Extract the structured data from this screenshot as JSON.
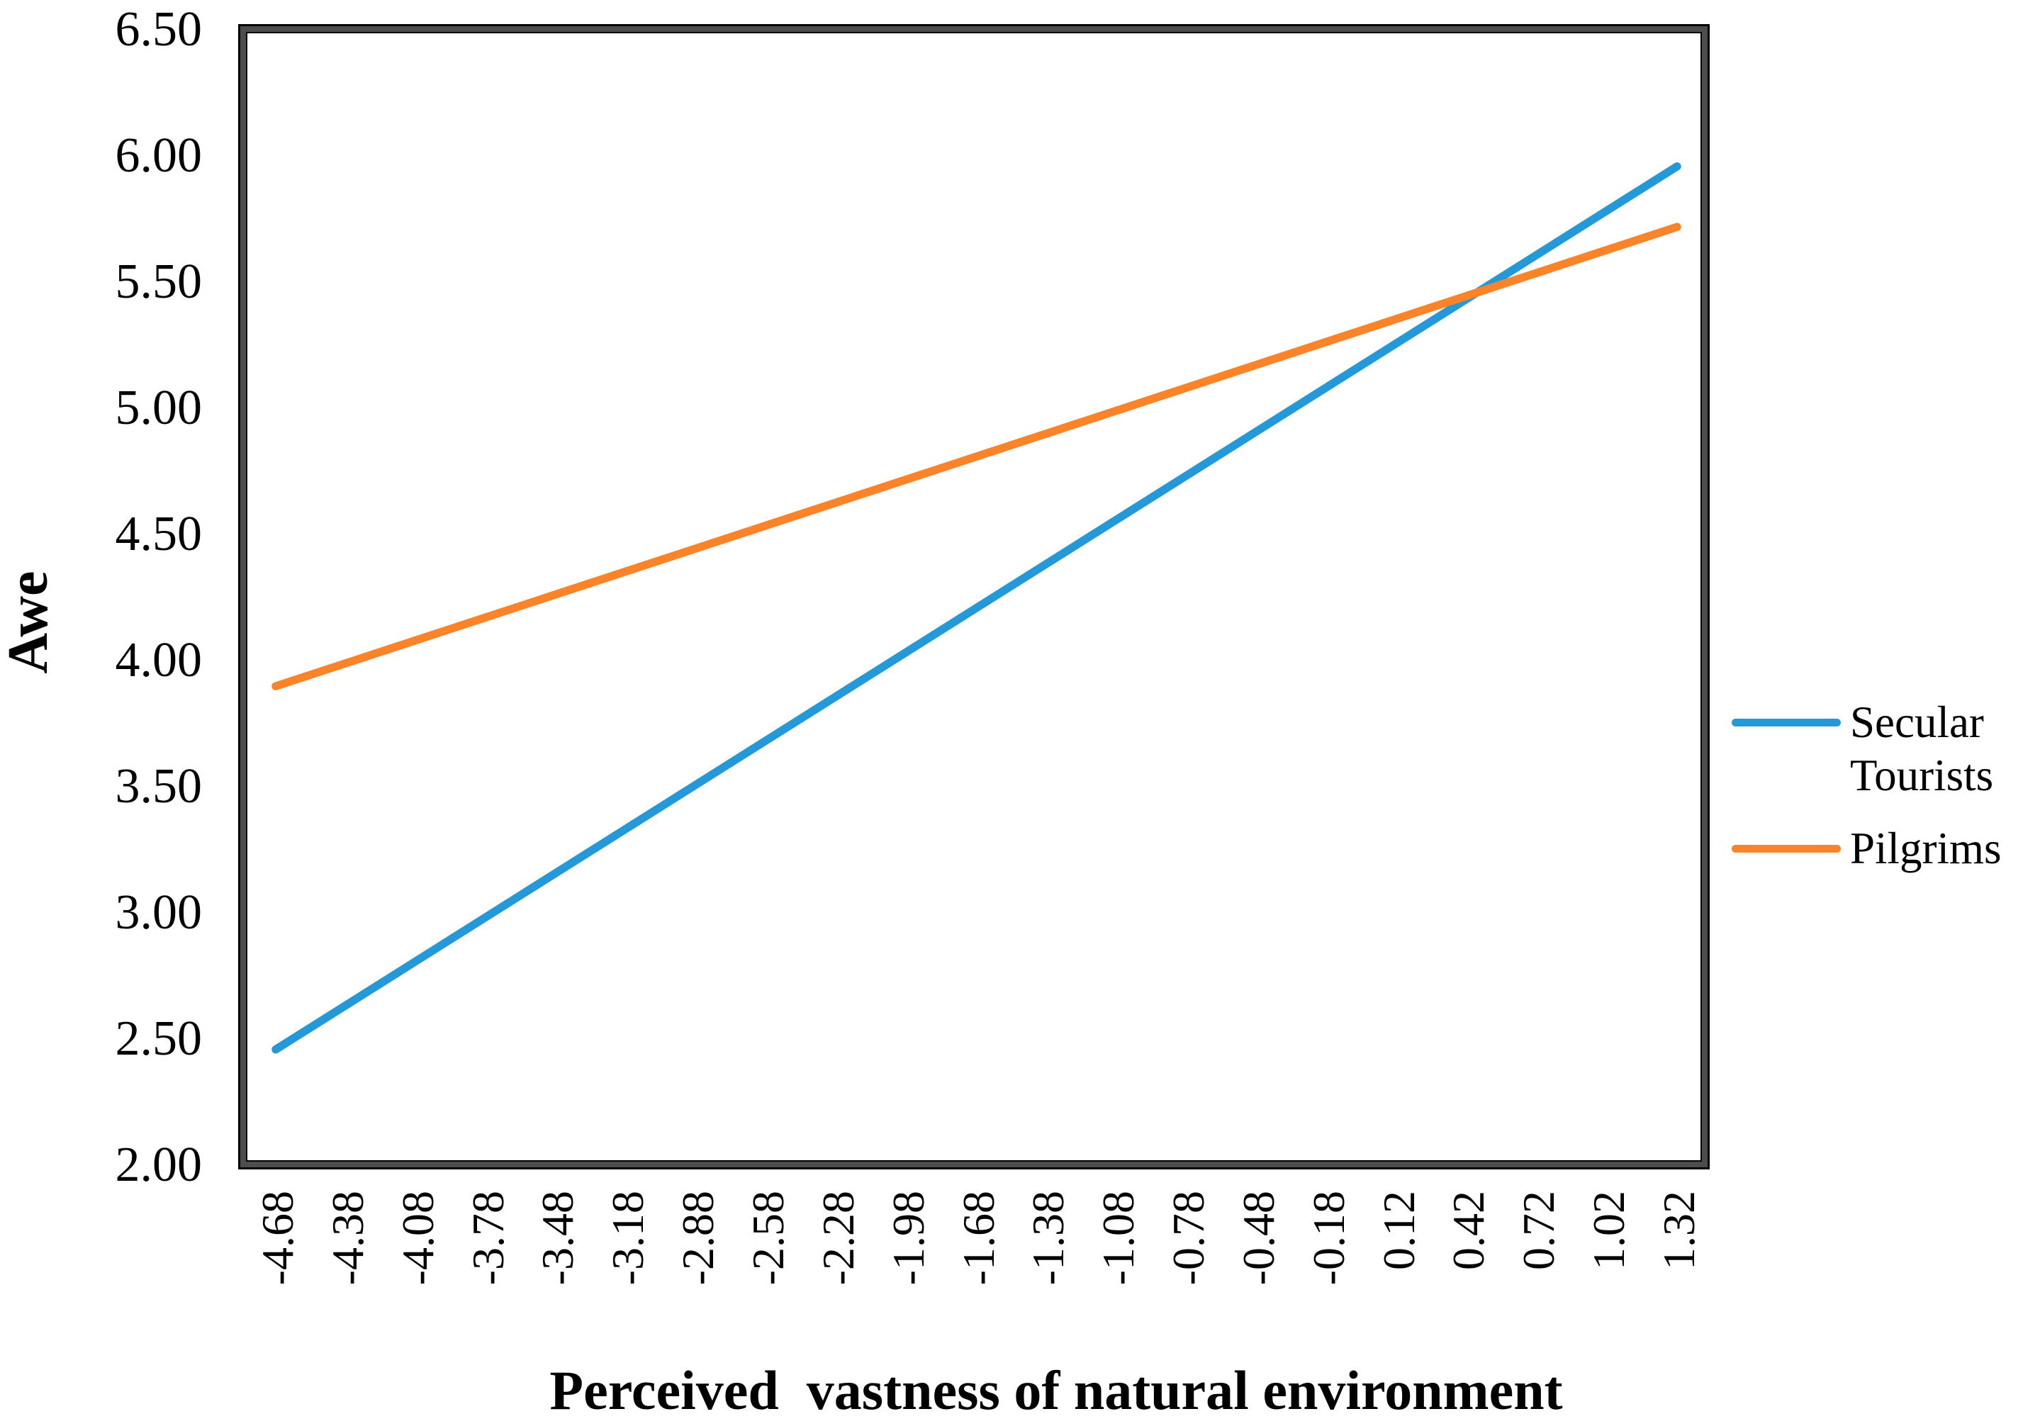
{
  "chart_data": {
    "type": "line",
    "title": "",
    "xlabel": "Perceived  vastness of natural environment",
    "ylabel": "Awe",
    "x_ticks": [
      "-4.68",
      "-4.38",
      "-4.08",
      "-3.78",
      "-3.48",
      "-3.18",
      "-2.88",
      "-2.58",
      "-2.28",
      "-1.98",
      "-1.68",
      "-1.38",
      "-1.08",
      "-0.78",
      "-0.48",
      "-0.18",
      "0.12",
      "0.42",
      "0.72",
      "1.02",
      "1.32"
    ],
    "y_ticks": [
      "6.50",
      "6.00",
      "5.50",
      "5.00",
      "4.50",
      "4.00",
      "3.50",
      "3.00",
      "2.50",
      "2.00"
    ],
    "xlim": [
      -4.68,
      1.32
    ],
    "ylim": [
      2.0,
      6.5
    ],
    "x_step": 0.3,
    "grid": false,
    "legend_position": "right",
    "series": [
      {
        "name": "Secular Tourists",
        "color": "#2499DA",
        "x": [
          -4.68,
          1.32
        ],
        "y": [
          2.45,
          5.95
        ]
      },
      {
        "name": "Pilgrims",
        "color": "#FC8328",
        "x": [
          -4.68,
          1.32
        ],
        "y": [
          3.89,
          5.71
        ]
      }
    ]
  },
  "colors": {
    "secular_tourists_line": "#2499DA",
    "pilgrims_line": "#FC8328",
    "plot_border": "#000000",
    "background": "#ffffff",
    "text": "#000000"
  }
}
